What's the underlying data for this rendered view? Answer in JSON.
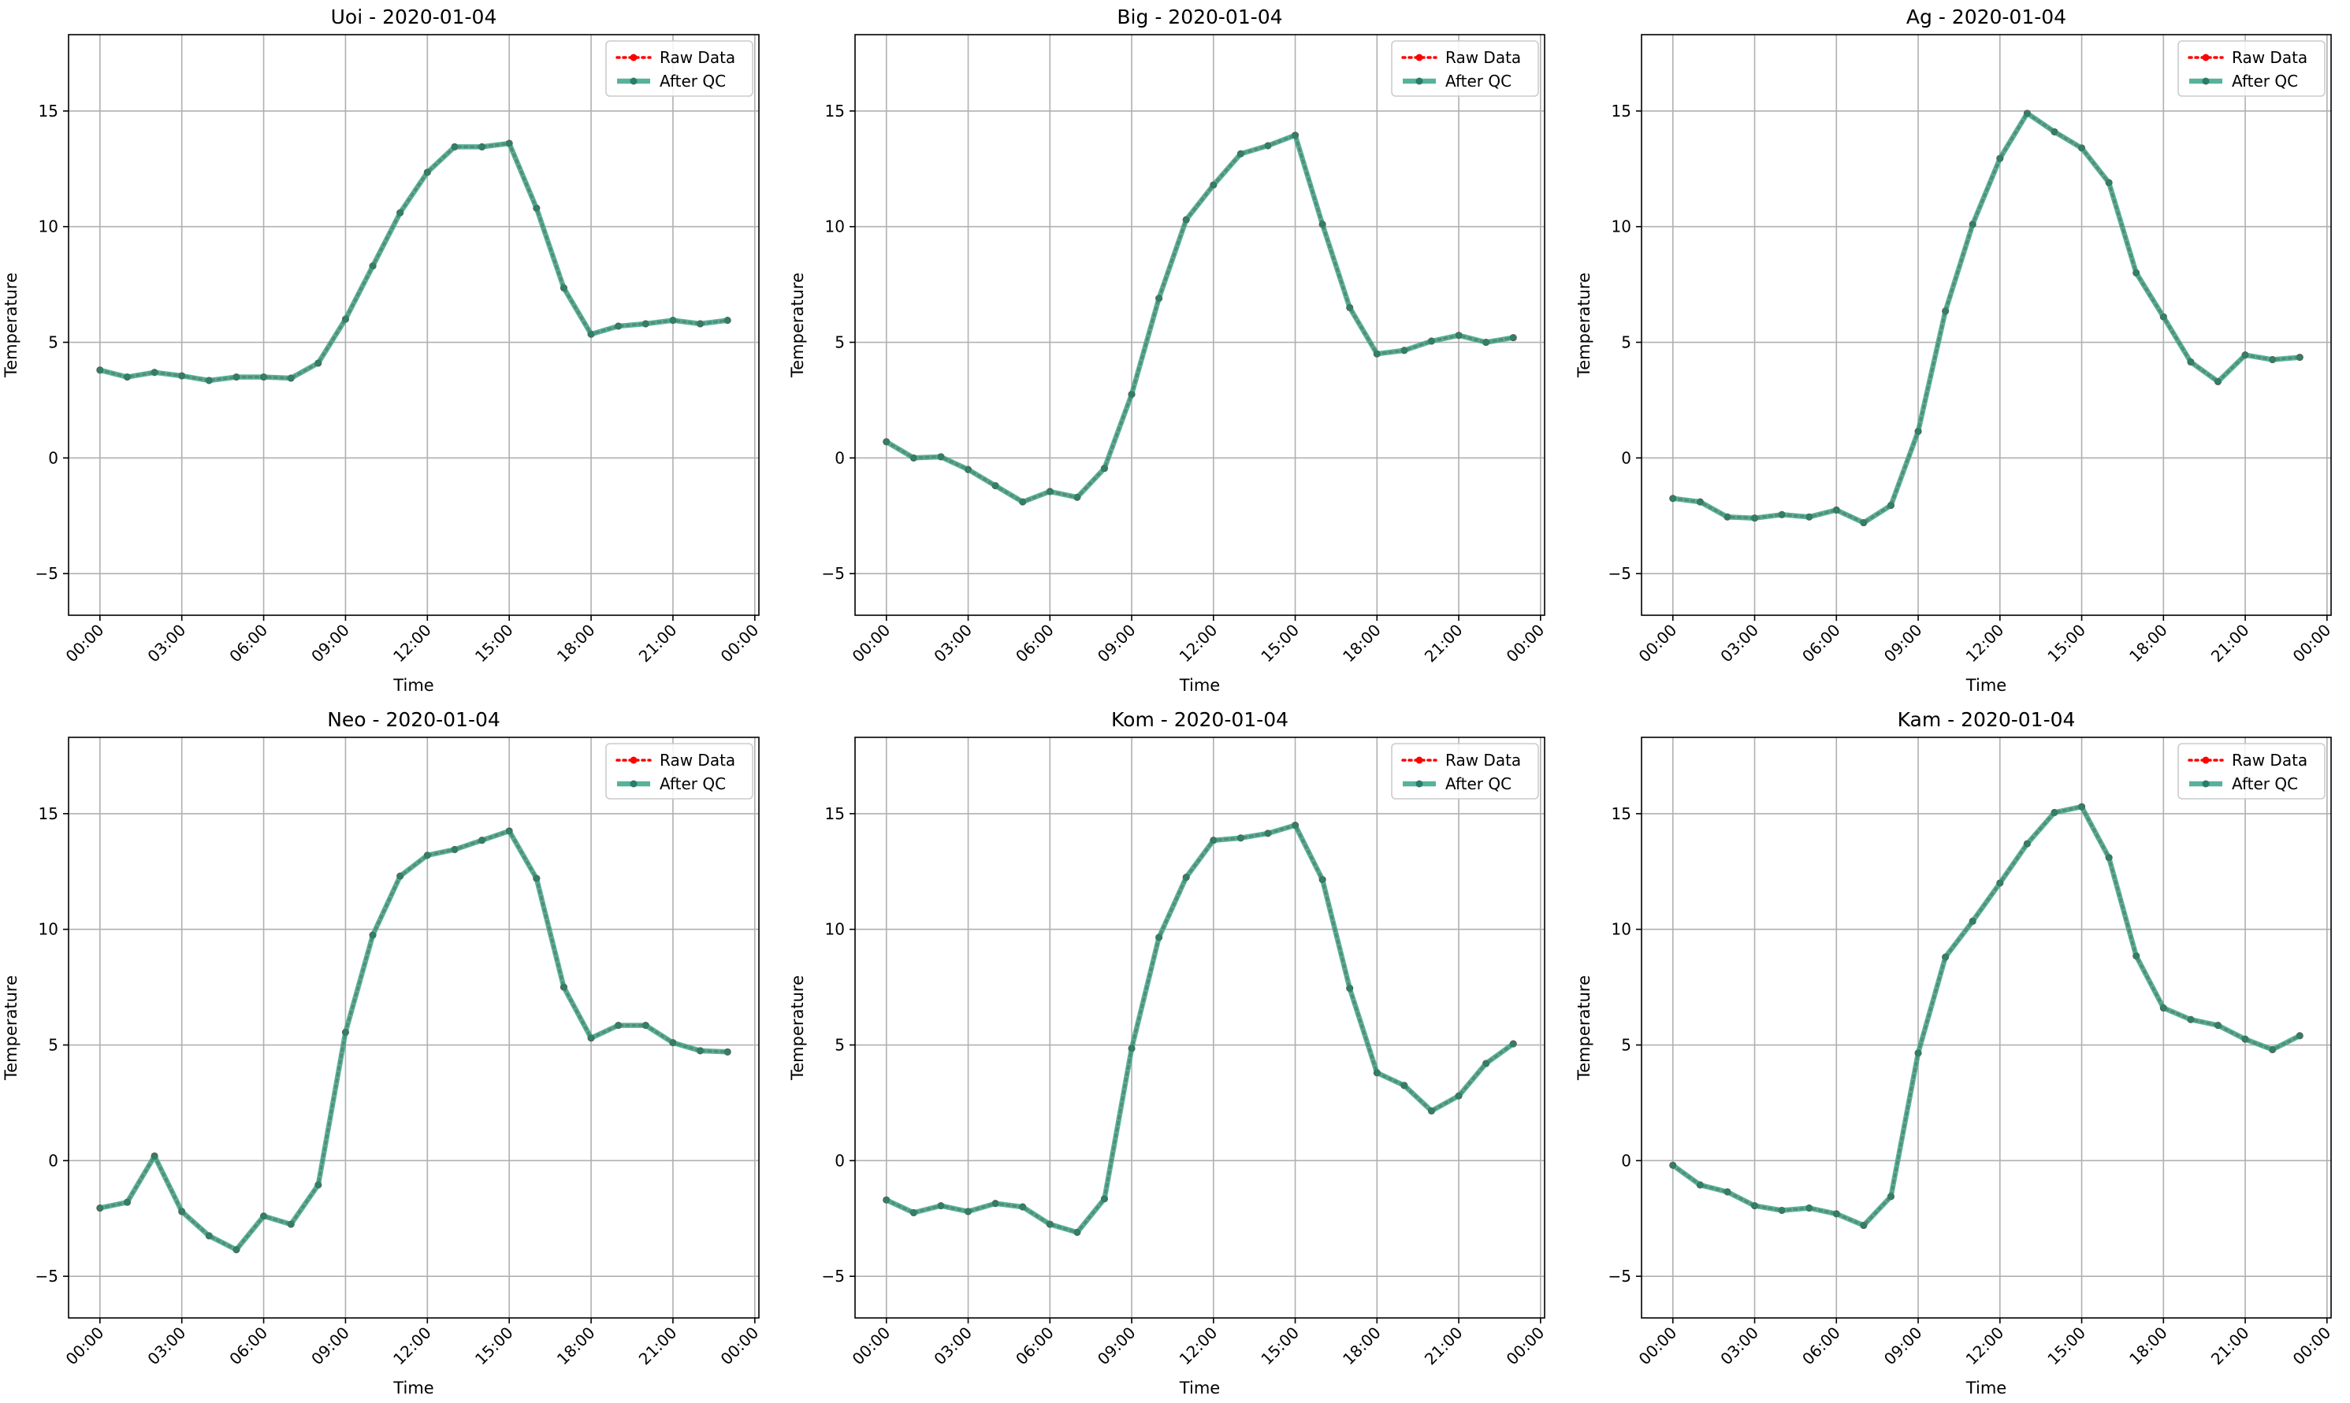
{
  "chart_data": [
    {
      "type": "line",
      "title": "Uoi - 2020-01-04",
      "xlabel": "Time",
      "ylabel": "Temperature",
      "x_ticks": [
        "00:00",
        "03:00",
        "06:00",
        "09:00",
        "12:00",
        "15:00",
        "18:00",
        "21:00",
        "00:00"
      ],
      "y_ticks": [
        -5,
        0,
        5,
        10,
        15
      ],
      "xlim_hours": [
        -1.15,
        24.15
      ],
      "ylim": [
        -6.8,
        18.3
      ],
      "grid": true,
      "legend": "upper right",
      "x_hours": [
        0,
        1,
        2,
        3,
        4,
        5,
        6,
        7,
        8,
        9,
        10,
        11,
        12,
        13,
        14,
        15,
        16,
        17,
        18,
        19,
        20,
        21,
        22,
        23
      ],
      "series": [
        {
          "name": "Raw Data",
          "color": "#ff0000",
          "style": "dotted-markers",
          "values": [
            3.8,
            3.5,
            3.7,
            3.55,
            3.35,
            3.5,
            3.5,
            3.45,
            4.1,
            6.0,
            8.3,
            10.6,
            12.35,
            13.45,
            13.45,
            13.6,
            10.8,
            7.35,
            5.35,
            5.7,
            5.8,
            5.95,
            5.8,
            5.95
          ]
        },
        {
          "name": "After QC",
          "color": "#3aa58a",
          "style": "solid-thick-markers",
          "values": [
            3.8,
            3.5,
            3.7,
            3.55,
            3.35,
            3.5,
            3.5,
            3.45,
            4.1,
            6.0,
            8.3,
            10.6,
            12.35,
            13.45,
            13.45,
            13.6,
            10.8,
            7.35,
            5.35,
            5.7,
            5.8,
            5.95,
            5.8,
            5.95
          ]
        }
      ]
    },
    {
      "type": "line",
      "title": "Big - 2020-01-04",
      "xlabel": "Time",
      "ylabel": "Temperature",
      "x_ticks": [
        "00:00",
        "03:00",
        "06:00",
        "09:00",
        "12:00",
        "15:00",
        "18:00",
        "21:00",
        "00:00"
      ],
      "y_ticks": [
        -5,
        0,
        5,
        10,
        15
      ],
      "xlim_hours": [
        -1.15,
        24.15
      ],
      "ylim": [
        -6.8,
        18.3
      ],
      "grid": true,
      "legend": "upper right",
      "x_hours": [
        0,
        1,
        2,
        3,
        4,
        5,
        6,
        7,
        8,
        9,
        10,
        11,
        12,
        13,
        14,
        15,
        16,
        17,
        18,
        19,
        20,
        21,
        22,
        23
      ],
      "series": [
        {
          "name": "Raw Data",
          "color": "#ff0000",
          "style": "dotted-markers",
          "values": [
            0.7,
            0.0,
            0.05,
            -0.5,
            -1.2,
            -1.9,
            -1.45,
            -1.7,
            -0.45,
            2.75,
            6.9,
            10.3,
            11.8,
            13.15,
            13.5,
            13.95,
            10.1,
            6.5,
            4.5,
            4.65,
            5.05,
            5.3,
            5.0,
            5.2
          ]
        },
        {
          "name": "After QC",
          "color": "#3aa58a",
          "style": "solid-thick-markers",
          "values": [
            0.7,
            0.0,
            0.05,
            -0.5,
            -1.2,
            -1.9,
            -1.45,
            -1.7,
            -0.45,
            2.75,
            6.9,
            10.3,
            11.8,
            13.15,
            13.5,
            13.95,
            10.1,
            6.5,
            4.5,
            4.65,
            5.05,
            5.3,
            5.0,
            5.2
          ]
        }
      ]
    },
    {
      "type": "line",
      "title": "Ag - 2020-01-04",
      "xlabel": "Time",
      "ylabel": "Temperature",
      "x_ticks": [
        "00:00",
        "03:00",
        "06:00",
        "09:00",
        "12:00",
        "15:00",
        "18:00",
        "21:00",
        "00:00"
      ],
      "y_ticks": [
        -5,
        0,
        5,
        10,
        15
      ],
      "xlim_hours": [
        -1.15,
        24.15
      ],
      "ylim": [
        -6.8,
        18.3
      ],
      "grid": true,
      "legend": "upper right",
      "x_hours": [
        0,
        1,
        2,
        3,
        4,
        5,
        6,
        7,
        8,
        9,
        10,
        11,
        12,
        13,
        14,
        15,
        16,
        17,
        18,
        19,
        20,
        21,
        22,
        23
      ],
      "series": [
        {
          "name": "Raw Data",
          "color": "#ff0000",
          "style": "dotted-markers",
          "values": [
            -1.75,
            -1.9,
            -2.55,
            -2.6,
            -2.45,
            -2.55,
            -2.25,
            -2.8,
            -2.05,
            1.15,
            6.35,
            10.1,
            12.95,
            14.9,
            14.1,
            13.4,
            11.9,
            8.0,
            6.1,
            4.15,
            3.3,
            4.45,
            4.25,
            4.35
          ]
        },
        {
          "name": "After QC",
          "color": "#3aa58a",
          "style": "solid-thick-markers",
          "values": [
            -1.75,
            -1.9,
            -2.55,
            -2.6,
            -2.45,
            -2.55,
            -2.25,
            -2.8,
            -2.05,
            1.15,
            6.35,
            10.1,
            12.95,
            14.9,
            14.1,
            13.4,
            11.9,
            8.0,
            6.1,
            4.15,
            3.3,
            4.45,
            4.25,
            4.35
          ]
        }
      ]
    },
    {
      "type": "line",
      "title": "Neo - 2020-01-04",
      "xlabel": "Time",
      "ylabel": "Temperature",
      "x_ticks": [
        "00:00",
        "03:00",
        "06:00",
        "09:00",
        "12:00",
        "15:00",
        "18:00",
        "21:00",
        "00:00"
      ],
      "y_ticks": [
        -5,
        0,
        5,
        10,
        15
      ],
      "xlim_hours": [
        -1.15,
        24.15
      ],
      "ylim": [
        -6.8,
        18.3
      ],
      "grid": true,
      "legend": "upper right",
      "x_hours": [
        0,
        1,
        2,
        3,
        4,
        5,
        6,
        7,
        8,
        9,
        10,
        11,
        12,
        13,
        14,
        15,
        16,
        17,
        18,
        19,
        20,
        21,
        22,
        23
      ],
      "series": [
        {
          "name": "Raw Data",
          "color": "#ff0000",
          "style": "dotted-markers",
          "values": [
            -2.05,
            -1.8,
            0.2,
            -2.2,
            -3.25,
            -3.85,
            -2.4,
            -2.75,
            -1.05,
            5.55,
            9.75,
            12.3,
            13.2,
            13.45,
            13.85,
            14.25,
            12.2,
            7.5,
            5.3,
            5.85,
            5.85,
            5.1,
            4.75,
            4.7
          ]
        },
        {
          "name": "After QC",
          "color": "#3aa58a",
          "style": "solid-thick-markers",
          "values": [
            -2.05,
            -1.8,
            0.2,
            -2.2,
            -3.25,
            -3.85,
            -2.4,
            -2.75,
            -1.05,
            5.55,
            9.75,
            12.3,
            13.2,
            13.45,
            13.85,
            14.25,
            12.2,
            7.5,
            5.3,
            5.85,
            5.85,
            5.1,
            4.75,
            4.7
          ]
        }
      ]
    },
    {
      "type": "line",
      "title": "Kom - 2020-01-04",
      "xlabel": "Time",
      "ylabel": "Temperature",
      "x_ticks": [
        "00:00",
        "03:00",
        "06:00",
        "09:00",
        "12:00",
        "15:00",
        "18:00",
        "21:00",
        "00:00"
      ],
      "y_ticks": [
        -5,
        0,
        5,
        10,
        15
      ],
      "xlim_hours": [
        -1.15,
        24.15
      ],
      "ylim": [
        -6.8,
        18.3
      ],
      "grid": true,
      "legend": "upper right",
      "x_hours": [
        0,
        1,
        2,
        3,
        4,
        5,
        6,
        7,
        8,
        9,
        10,
        11,
        12,
        13,
        14,
        15,
        16,
        17,
        18,
        19,
        20,
        21,
        22,
        23
      ],
      "series": [
        {
          "name": "Raw Data",
          "color": "#ff0000",
          "style": "dotted-markers",
          "values": [
            -1.7,
            -2.25,
            -1.95,
            -2.2,
            -1.85,
            -2.0,
            -2.75,
            -3.1,
            -1.65,
            4.85,
            9.65,
            12.25,
            13.85,
            13.95,
            14.15,
            14.5,
            12.15,
            7.45,
            3.8,
            3.25,
            2.15,
            2.8,
            4.2,
            5.05
          ]
        },
        {
          "name": "After QC",
          "color": "#3aa58a",
          "style": "solid-thick-markers",
          "values": [
            -1.7,
            -2.25,
            -1.95,
            -2.2,
            -1.85,
            -2.0,
            -2.75,
            -3.1,
            -1.65,
            4.85,
            9.65,
            12.25,
            13.85,
            13.95,
            14.15,
            14.5,
            12.15,
            7.45,
            3.8,
            3.25,
            2.15,
            2.8,
            4.2,
            5.05
          ]
        }
      ]
    },
    {
      "type": "line",
      "title": "Kam - 2020-01-04",
      "xlabel": "Time",
      "ylabel": "Temperature",
      "x_ticks": [
        "00:00",
        "03:00",
        "06:00",
        "09:00",
        "12:00",
        "15:00",
        "18:00",
        "21:00",
        "00:00"
      ],
      "y_ticks": [
        -5,
        0,
        5,
        10,
        15
      ],
      "xlim_hours": [
        -1.15,
        24.15
      ],
      "ylim": [
        -6.8,
        18.3
      ],
      "grid": true,
      "legend": "upper right",
      "x_hours": [
        0,
        1,
        2,
        3,
        4,
        5,
        6,
        7,
        8,
        9,
        10,
        11,
        12,
        13,
        14,
        15,
        16,
        17,
        18,
        19,
        20,
        21,
        22,
        23
      ],
      "series": [
        {
          "name": "Raw Data",
          "color": "#ff0000",
          "style": "dotted-markers",
          "values": [
            -0.2,
            -1.05,
            -1.35,
            -1.95,
            -2.15,
            -2.05,
            -2.3,
            -2.8,
            -1.55,
            4.65,
            8.8,
            10.35,
            12.0,
            13.7,
            15.05,
            15.3,
            13.1,
            8.85,
            6.6,
            6.1,
            5.85,
            5.25,
            4.8,
            5.4
          ]
        },
        {
          "name": "After QC",
          "color": "#3aa58a",
          "style": "solid-thick-markers",
          "values": [
            -0.2,
            -1.05,
            -1.35,
            -1.95,
            -2.15,
            -2.05,
            -2.3,
            -2.8,
            -1.55,
            4.65,
            8.8,
            10.35,
            12.0,
            13.7,
            15.05,
            15.3,
            13.1,
            8.85,
            6.6,
            6.1,
            5.85,
            5.25,
            4.8,
            5.4
          ]
        }
      ]
    }
  ]
}
